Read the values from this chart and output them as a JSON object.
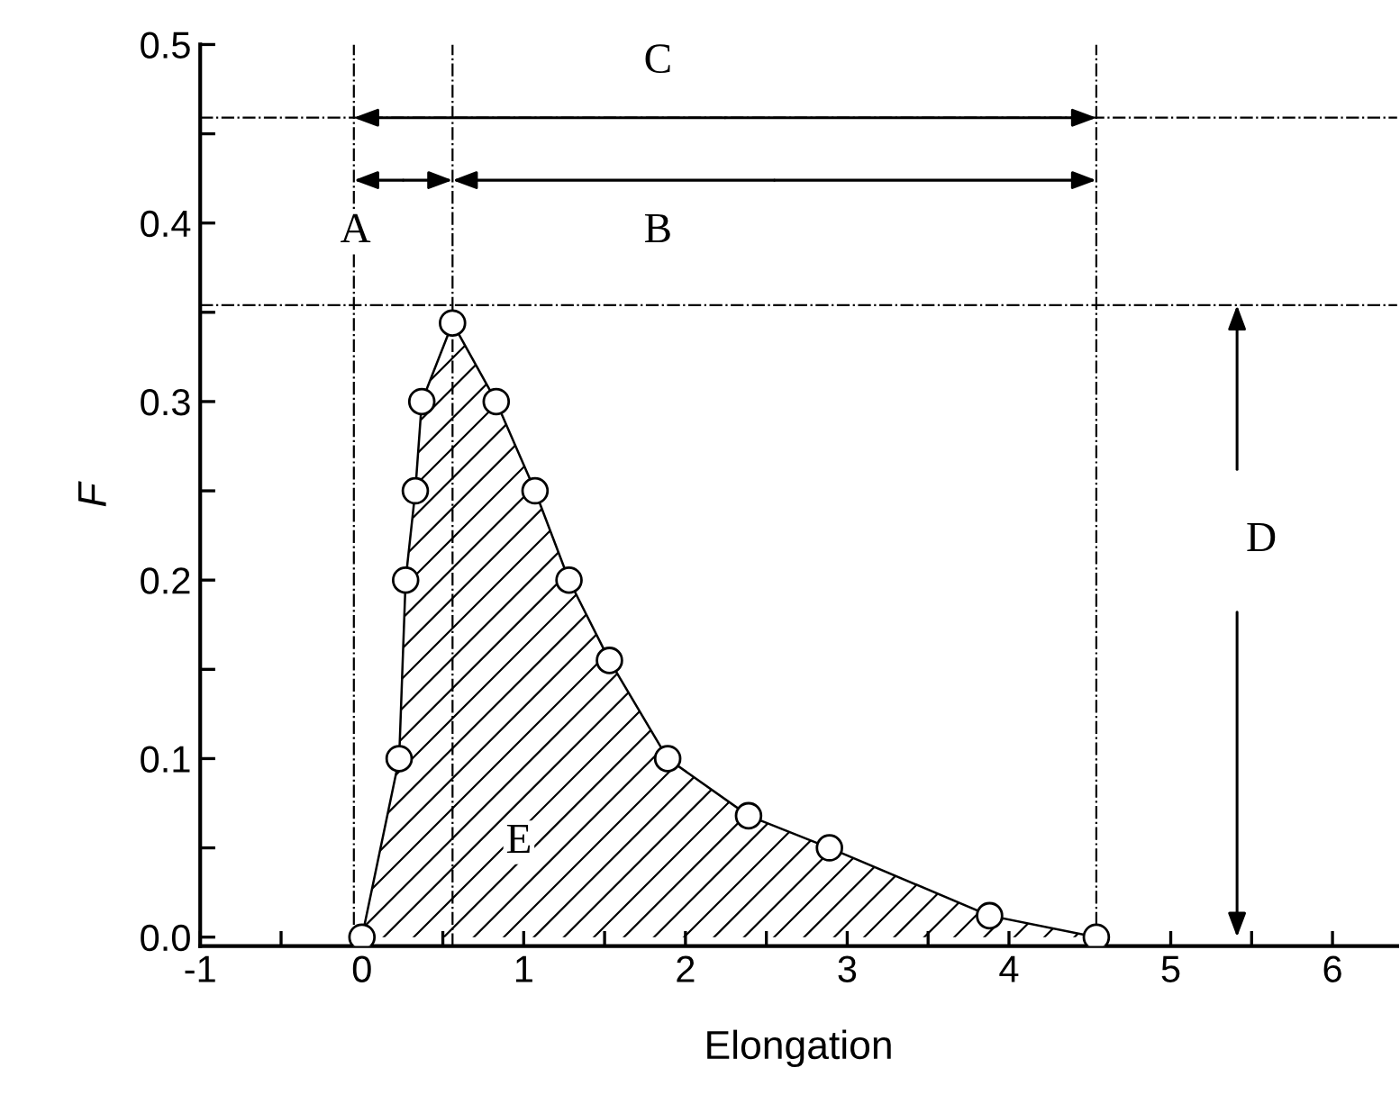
{
  "chart_data": {
    "type": "area",
    "xlabel": "Elongation",
    "ylabel": "F",
    "series": [
      {
        "color": "#000000",
        "marker": "circle",
        "x": [
          0,
          0.23,
          0.27,
          0.33,
          0.37,
          0.56,
          0.83,
          1.07,
          1.28,
          1.53,
          1.89,
          2.39,
          2.89,
          3.88,
          4.54
        ],
        "values": [
          0,
          0.1,
          0.2,
          0.25,
          0.3,
          0.344,
          0.3,
          0.25,
          0.2,
          0.155,
          0.1,
          0.068,
          0.05,
          0.012,
          0
        ]
      }
    ],
    "xlim": [
      -1,
      6.4
    ],
    "ylim": [
      -0.005,
      0.5
    ],
    "xticks": [
      -1,
      {
        "value": -0.5,
        "label": null
      },
      0,
      {
        "value": 0.5,
        "label": null
      },
      1,
      {
        "value": 1.5,
        "label": null
      },
      2,
      {
        "value": 2.5,
        "label": null
      },
      3,
      {
        "value": 3.5,
        "label": null
      },
      4,
      {
        "value": 4.5,
        "label": null
      },
      5,
      {
        "value": 5.5,
        "label": null
      },
      6
    ],
    "yticks": [
      {
        "value": 0,
        "label": "0.0"
      },
      {
        "value": 0.05,
        "label": null
      },
      0.1,
      {
        "value": 0.15,
        "label": null
      },
      0.2,
      {
        "value": 0.25,
        "label": null
      },
      0.3,
      {
        "value": 0.35,
        "label": null
      },
      0.4,
      {
        "value": 0.45,
        "label": null
      },
      0.5
    ],
    "ref_lines": [
      {
        "axis": "x",
        "value": -0.05,
        "line_style": "dashdot"
      },
      {
        "axis": "x",
        "value": 0.56,
        "line_style": "dashdot"
      },
      {
        "axis": "x",
        "value": 4.54,
        "line_style": "dashdot"
      },
      {
        "axis": "y",
        "value": 0.354,
        "line_style": "dashdot"
      },
      {
        "axis": "y",
        "value": 0.459,
        "line_style": "dashdot"
      }
    ],
    "annotations": [
      {
        "text": "C",
        "x": 1.83,
        "y": 0.49
      },
      {
        "text": "A",
        "x": -0.04,
        "y": 0.395
      },
      {
        "text": "B",
        "x": 1.83,
        "y": 0.395
      },
      {
        "text": "D",
        "x": 5.56,
        "y": 0.222
      },
      {
        "text": "E",
        "x": 0.97,
        "y": 0.053
      }
    ],
    "grid": false
  }
}
